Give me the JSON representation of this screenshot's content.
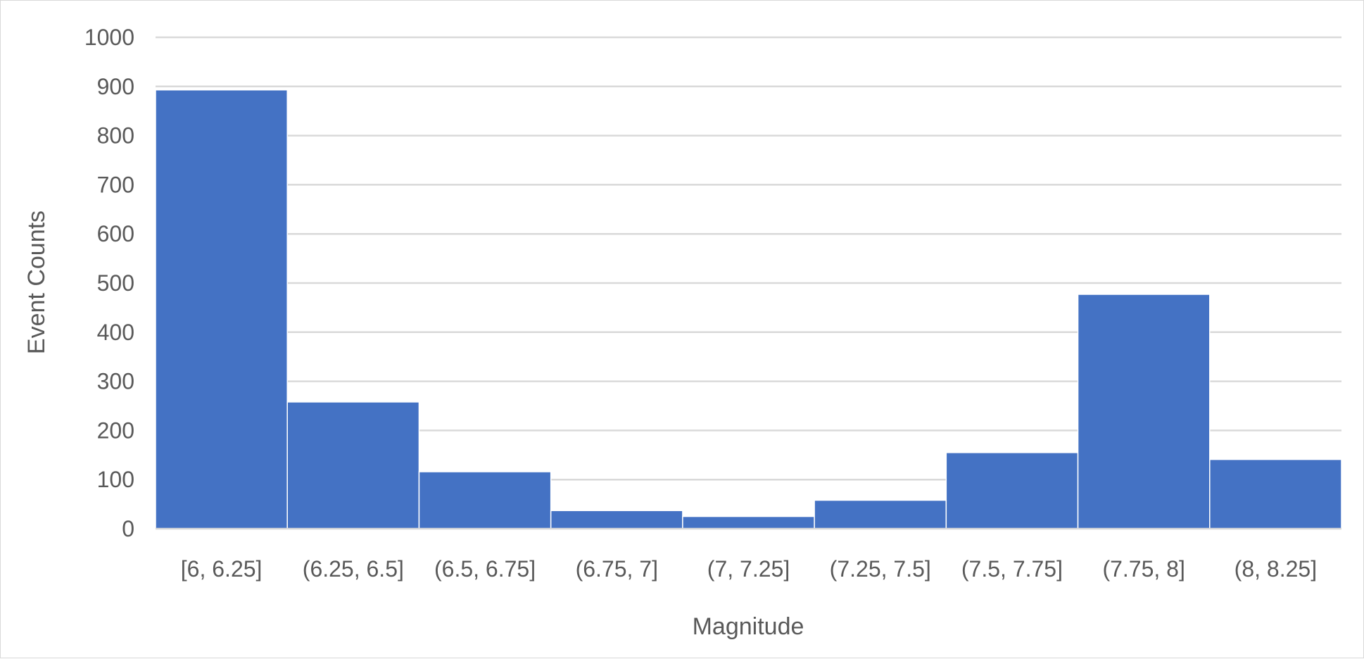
{
  "chart_data": {
    "type": "bar",
    "title": "",
    "xlabel": "Magnitude",
    "ylabel": "Event Counts",
    "categories": [
      "[6, 6.25]",
      "(6.25, 6.5]",
      "(6.5, 6.75]",
      "(6.75, 7]",
      "(7, 7.25]",
      "(7.25, 7.5]",
      "(7.5, 7.75]",
      "(7.75, 8]",
      "(8, 8.25]"
    ],
    "values": [
      893,
      258,
      116,
      37,
      25,
      58,
      155,
      477,
      141
    ],
    "ylim": [
      0,
      1000
    ],
    "yticks": [
      "0",
      "100",
      "200",
      "300",
      "400",
      "500",
      "600",
      "700",
      "800",
      "900",
      "1000"
    ],
    "grid": true,
    "legend": "none",
    "bar_color": "#4472C4",
    "gridline_color": "#d9d9d9"
  }
}
